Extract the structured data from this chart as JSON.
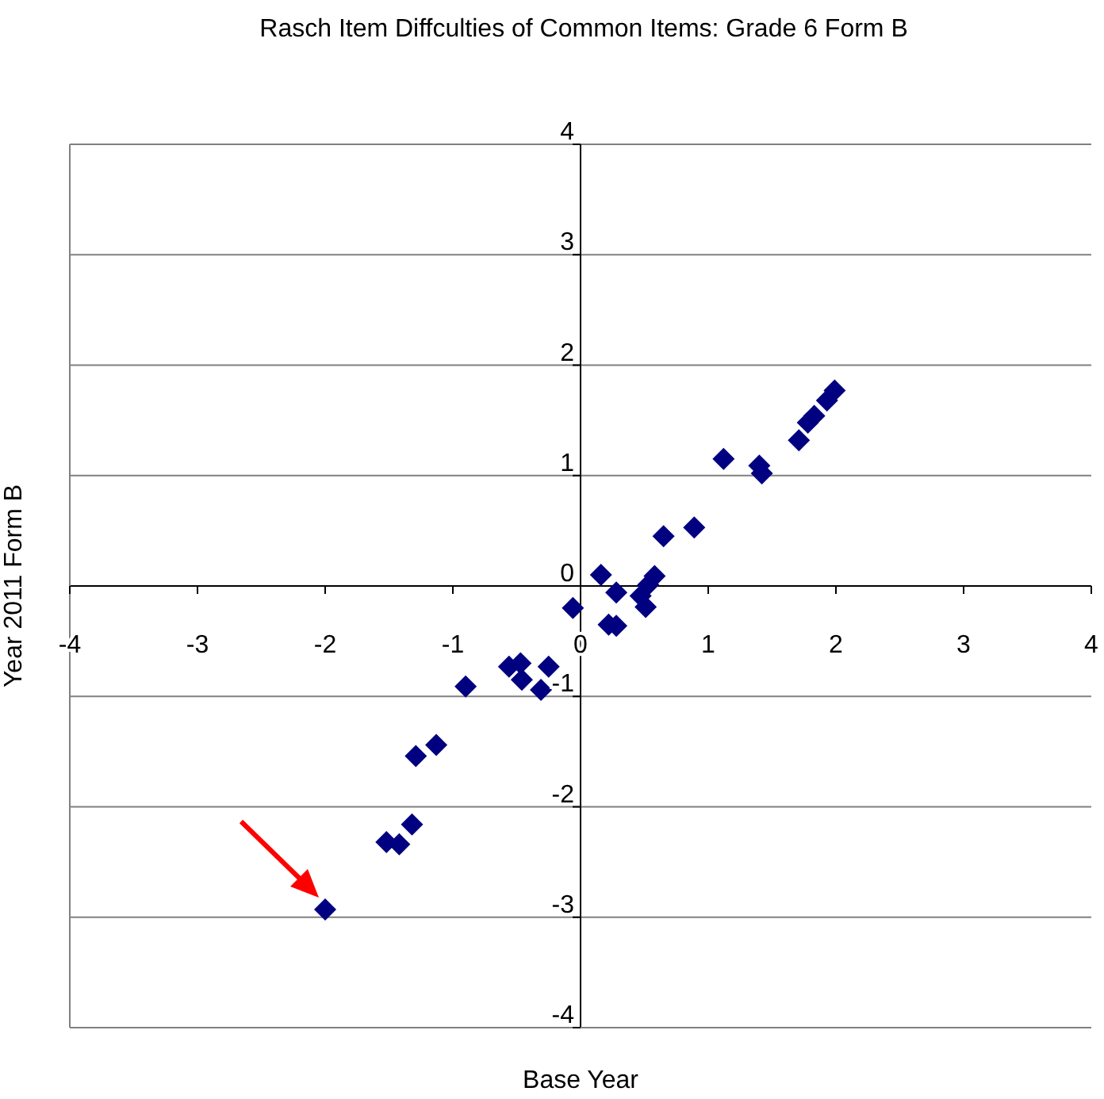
{
  "chart_data": {
    "type": "scatter",
    "title": "Rasch Item Diffculties of Common Items: Grade 6 Form B",
    "xlabel": "Base Year",
    "ylabel": "Year 2011 Form B",
    "x": [
      -2.0,
      -1.52,
      -1.42,
      -1.32,
      -1.29,
      -1.13,
      -0.9,
      -0.56,
      -0.47,
      -0.46,
      -0.31,
      -0.25,
      -0.06,
      0.16,
      0.22,
      0.28,
      0.28,
      0.47,
      0.51,
      0.53,
      0.58,
      0.65,
      0.89,
      1.12,
      1.4,
      1.42,
      1.71,
      1.78,
      1.83,
      1.93,
      1.99
    ],
    "series": [
      {
        "color": "#000080",
        "values": [
          -2.93,
          -2.32,
          -2.34,
          -2.16,
          -1.54,
          -1.44,
          -0.91,
          -0.73,
          -0.7,
          -0.85,
          -0.94,
          -0.73,
          -0.2,
          0.1,
          -0.35,
          -0.36,
          -0.06,
          -0.09,
          -0.19,
          0.01,
          0.09,
          0.45,
          0.53,
          1.15,
          1.09,
          1.02,
          1.32,
          1.48,
          1.54,
          1.68,
          1.77
        ]
      }
    ],
    "xlim": [
      -4,
      4
    ],
    "ylim": [
      -4,
      4
    ],
    "xticks": [
      -4,
      -3,
      -2,
      -1,
      0,
      1,
      2,
      3,
      4
    ],
    "yticks": [
      -4,
      -3,
      -2,
      -1,
      0,
      1,
      2,
      3,
      4
    ],
    "grid": "y",
    "marker": "diamond",
    "legend": false
  }
}
